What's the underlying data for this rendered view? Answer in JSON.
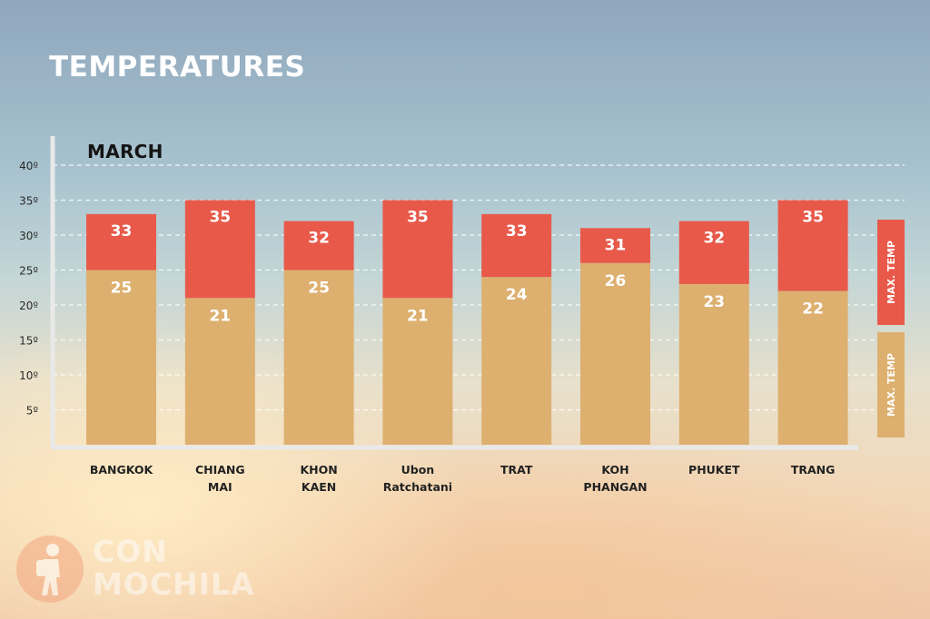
{
  "header": {
    "title": "TEMPERATURES"
  },
  "chart_data": {
    "type": "bar",
    "subtitle": "MARCH",
    "categories": [
      [
        "BANGKOK"
      ],
      [
        "CHIANG",
        "MAI"
      ],
      [
        "KHON",
        "KAEN"
      ],
      [
        "Ubon",
        "Ratchatani"
      ],
      [
        "TRAT"
      ],
      [
        "KOH",
        "PHANGAN"
      ],
      [
        "PHUKET"
      ],
      [
        "TRANG"
      ]
    ],
    "series": [
      {
        "name": "MAX. TEMP",
        "values": [
          25,
          21,
          25,
          21,
          24,
          26,
          23,
          22
        ],
        "color": "#ddb070"
      },
      {
        "name": "MAX. TEMP",
        "values": [
          33,
          35,
          32,
          35,
          33,
          31,
          32,
          35
        ],
        "color": "#e8594a"
      }
    ],
    "y_ticks": [
      "40º",
      "35º",
      "30º",
      "25º",
      "20º",
      "15º",
      "10º",
      "5º"
    ],
    "y_tick_values": [
      40,
      35,
      30,
      25,
      20,
      15,
      10,
      5
    ],
    "ylim": [
      0,
      40
    ],
    "grid": true,
    "legend_position": "right"
  },
  "logo": {
    "line1": "CON",
    "line2": "MOCHILA"
  }
}
